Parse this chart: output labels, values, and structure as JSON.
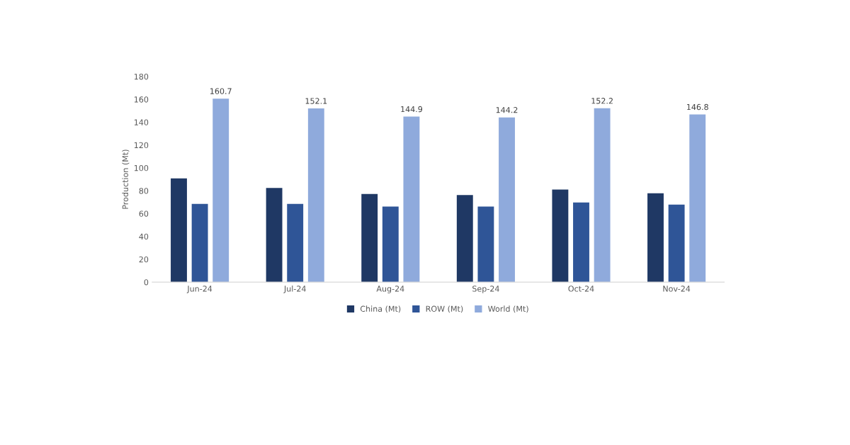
{
  "chart_data": {
    "type": "bar",
    "ylabel": "Production (Mt)",
    "categories": [
      "Jun-24",
      "Jul-24",
      "Aug-24",
      "Sep-24",
      "Oct-24",
      "Nov-24"
    ],
    "series": [
      {
        "name": "China (Mt)",
        "color": "#1f3864",
        "values": [
          90.8,
          82.4,
          77.2,
          76.3,
          81.1,
          77.8
        ]
      },
      {
        "name": "ROW (Mt)",
        "color": "#2f5597",
        "values": [
          68.5,
          68.5,
          66.2,
          66.2,
          69.7,
          67.9
        ]
      },
      {
        "name": "World (Mt)",
        "color": "#8faadc",
        "values": [
          160.7,
          152.1,
          144.9,
          144.2,
          152.2,
          146.8
        ],
        "value_labels": [
          "160.7",
          "152.1",
          "144.9",
          "144.2",
          "152.2",
          "146.8"
        ]
      }
    ],
    "ylim": [
      0,
      180
    ],
    "yticks": [
      0,
      20,
      40,
      60,
      80,
      100,
      120,
      140,
      160,
      180
    ],
    "grid": false,
    "legend": "bottom"
  }
}
